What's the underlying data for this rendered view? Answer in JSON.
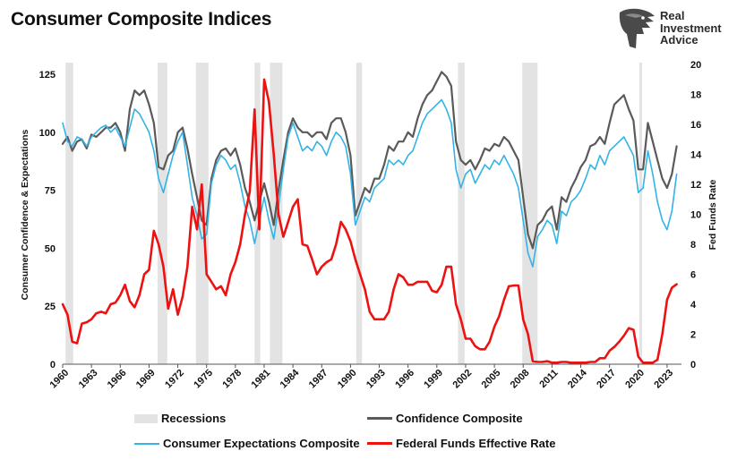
{
  "page": {
    "title": "Consumer Composite Indices"
  },
  "logo": {
    "lines": [
      "Real",
      "Investment",
      "Advice"
    ],
    "icon": "eagle-head-icon"
  },
  "colors": {
    "confidence": "#5a5a5a",
    "expectations": "#33b3e6",
    "fedfunds": "#ee1111",
    "recession": "#e3e3e3"
  },
  "chart_data": {
    "type": "line",
    "title": "Consumer Composite Indices",
    "xlabel": "",
    "ylabel": "Consumer Confidence & Expectations",
    "ylabel_right": "Fed Funds Rate",
    "xlim": [
      1960,
      2024.5
    ],
    "ylim": [
      0,
      125
    ],
    "ylim_right": [
      0,
      20
    ],
    "x_ticks": [
      "1960",
      "1963",
      "1966",
      "1969",
      "1972",
      "1975",
      "1978",
      "1981",
      "1984",
      "1987",
      "1990",
      "1993",
      "1996",
      "1999",
      "2002",
      "2005",
      "2008",
      "2011",
      "2014",
      "2017",
      "2020",
      "2023"
    ],
    "y_ticks": [
      "0",
      "25",
      "50",
      "75",
      "100",
      "125"
    ],
    "y_ticks_right": [
      "0",
      "2",
      "4",
      "6",
      "8",
      "10",
      "12",
      "14",
      "16",
      "18",
      "20"
    ],
    "recessions": [
      [
        1960.3,
        1961.1
      ],
      [
        1969.9,
        1970.9
      ],
      [
        1973.9,
        1975.2
      ],
      [
        1980.0,
        1980.6
      ],
      [
        1981.6,
        1982.9
      ],
      [
        1990.6,
        1991.2
      ],
      [
        2001.2,
        2001.9
      ],
      [
        2007.9,
        2009.5
      ],
      [
        2020.1,
        2020.4
      ]
    ],
    "series": [
      {
        "name": "Confidence Composite",
        "axis": "left",
        "x": [
          1960,
          1960.5,
          1961,
          1961.5,
          1962,
          1962.5,
          1963,
          1963.5,
          1964,
          1964.5,
          1965,
          1965.5,
          1966,
          1966.5,
          1967,
          1967.5,
          1968,
          1968.5,
          1969,
          1969.5,
          1970,
          1970.5,
          1971,
          1971.5,
          1972,
          1972.5,
          1973,
          1973.5,
          1974,
          1974.5,
          1975,
          1975.5,
          1976,
          1976.5,
          1977,
          1977.5,
          1978,
          1978.5,
          1979,
          1979.5,
          1980,
          1980.5,
          1981,
          1981.5,
          1982,
          1982.5,
          1983,
          1983.5,
          1984,
          1984.5,
          1985,
          1985.5,
          1986,
          1986.5,
          1987,
          1987.5,
          1988,
          1988.5,
          1989,
          1989.5,
          1990,
          1990.5,
          1991,
          1991.5,
          1992,
          1992.5,
          1993,
          1993.5,
          1994,
          1994.5,
          1995,
          1995.5,
          1996,
          1996.5,
          1997,
          1997.5,
          1998,
          1998.5,
          1999,
          1999.5,
          2000,
          2000.5,
          2001,
          2001.5,
          2002,
          2002.5,
          2003,
          2003.5,
          2004,
          2004.5,
          2005,
          2005.5,
          2006,
          2006.5,
          2007,
          2007.5,
          2008,
          2008.5,
          2009,
          2009.5,
          2010,
          2010.5,
          2011,
          2011.5,
          2012,
          2012.5,
          2013,
          2013.5,
          2014,
          2014.5,
          2015,
          2015.5,
          2016,
          2016.5,
          2017,
          2017.5,
          2018,
          2018.5,
          2019,
          2019.5,
          2020,
          2020.5,
          2021,
          2021.5,
          2022,
          2022.5,
          2023,
          2023.5,
          2024
        ],
        "values": [
          95,
          98,
          92,
          96,
          97,
          93,
          99,
          98,
          100,
          102,
          102,
          104,
          100,
          92,
          110,
          118,
          116,
          118,
          112,
          104,
          85,
          84,
          90,
          92,
          100,
          102,
          93,
          82,
          72,
          62,
          60,
          80,
          88,
          92,
          93,
          90,
          93,
          86,
          76,
          70,
          62,
          70,
          78,
          70,
          60,
          75,
          88,
          100,
          106,
          102,
          100,
          100,
          98,
          100,
          100,
          97,
          104,
          106,
          106,
          100,
          90,
          64,
          70,
          76,
          74,
          80,
          80,
          86,
          94,
          92,
          96,
          96,
          100,
          98,
          106,
          112,
          116,
          118,
          122,
          126,
          124,
          120,
          96,
          88,
          86,
          88,
          84,
          88,
          93,
          92,
          95,
          94,
          98,
          96,
          92,
          88,
          72,
          56,
          50,
          60,
          62,
          66,
          68,
          58,
          72,
          70,
          76,
          80,
          85,
          88,
          94,
          95,
          98,
          95,
          104,
          112,
          114,
          116,
          110,
          105,
          84,
          84,
          104,
          96,
          88,
          80,
          76,
          82,
          94
        ]
      },
      {
        "name": "Consumer Expectations Composite",
        "axis": "left",
        "x": [
          1960,
          1960.5,
          1961,
          1961.5,
          1962,
          1962.5,
          1963,
          1963.5,
          1964,
          1964.5,
          1965,
          1965.5,
          1966,
          1966.5,
          1967,
          1967.5,
          1968,
          1968.5,
          1969,
          1969.5,
          1970,
          1970.5,
          1971,
          1971.5,
          1972,
          1972.5,
          1973,
          1973.5,
          1974,
          1974.5,
          1975,
          1975.5,
          1976,
          1976.5,
          1977,
          1977.5,
          1978,
          1978.5,
          1979,
          1979.5,
          1980,
          1980.5,
          1981,
          1981.5,
          1982,
          1982.5,
          1983,
          1983.5,
          1984,
          1984.5,
          1985,
          1985.5,
          1986,
          1986.5,
          1987,
          1987.5,
          1988,
          1988.5,
          1989,
          1989.5,
          1990,
          1990.5,
          1991,
          1991.5,
          1992,
          1992.5,
          1993,
          1993.5,
          1994,
          1994.5,
          1995,
          1995.5,
          1996,
          1996.5,
          1997,
          1997.5,
          1998,
          1998.5,
          1999,
          1999.5,
          2000,
          2000.5,
          2001,
          2001.5,
          2002,
          2002.5,
          2003,
          2003.5,
          2004,
          2004.5,
          2005,
          2005.5,
          2006,
          2006.5,
          2007,
          2007.5,
          2008,
          2008.5,
          2009,
          2009.5,
          2010,
          2010.5,
          2011,
          2011.5,
          2012,
          2012.5,
          2013,
          2013.5,
          2014,
          2014.5,
          2015,
          2015.5,
          2016,
          2016.5,
          2017,
          2017.5,
          2018,
          2018.5,
          2019,
          2019.5,
          2020,
          2020.5,
          2021,
          2021.5,
          2022,
          2022.5,
          2023,
          2023.5,
          2024
        ],
        "values": [
          104,
          96,
          94,
          98,
          97,
          94,
          98,
          100,
          102,
          103,
          100,
          102,
          98,
          94,
          102,
          110,
          108,
          104,
          100,
          92,
          80,
          74,
          82,
          90,
          96,
          100,
          86,
          72,
          64,
          54,
          56,
          78,
          86,
          90,
          88,
          84,
          86,
          78,
          68,
          62,
          52,
          62,
          72,
          62,
          54,
          68,
          84,
          98,
          104,
          98,
          92,
          94,
          92,
          96,
          94,
          90,
          96,
          100,
          98,
          94,
          82,
          60,
          66,
          72,
          70,
          76,
          78,
          80,
          88,
          86,
          88,
          86,
          90,
          92,
          98,
          104,
          108,
          110,
          112,
          114,
          110,
          104,
          84,
          76,
          82,
          84,
          78,
          82,
          86,
          84,
          88,
          86,
          90,
          86,
          82,
          76,
          62,
          48,
          42,
          55,
          58,
          62,
          60,
          52,
          66,
          64,
          70,
          72,
          75,
          80,
          86,
          84,
          90,
          86,
          92,
          94,
          96,
          98,
          94,
          90,
          74,
          76,
          92,
          82,
          70,
          62,
          58,
          66,
          82
        ]
      },
      {
        "name": "Federal Funds Effective Rate",
        "axis": "right",
        "x": [
          1960,
          1960.5,
          1961,
          1961.5,
          1962,
          1962.5,
          1963,
          1963.5,
          1964,
          1964.5,
          1965,
          1965.5,
          1966,
          1966.5,
          1967,
          1967.5,
          1968,
          1968.5,
          1969,
          1969.5,
          1970,
          1970.5,
          1971,
          1971.5,
          1972,
          1972.5,
          1973,
          1973.5,
          1974,
          1974.5,
          1975,
          1975.5,
          1976,
          1976.5,
          1977,
          1977.5,
          1978,
          1978.5,
          1979,
          1979.5,
          1980,
          1980.5,
          1981,
          1981.5,
          1982,
          1982.5,
          1983,
          1983.5,
          1984,
          1984.5,
          1985,
          1985.5,
          1986,
          1986.5,
          1987,
          1987.5,
          1988,
          1988.5,
          1989,
          1989.5,
          1990,
          1990.5,
          1991,
          1991.5,
          1992,
          1992.5,
          1993,
          1993.5,
          1994,
          1994.5,
          1995,
          1995.5,
          1996,
          1996.5,
          1997,
          1997.5,
          1998,
          1998.5,
          1999,
          1999.5,
          2000,
          2000.5,
          2001,
          2001.5,
          2002,
          2002.5,
          2003,
          2003.5,
          2004,
          2004.5,
          2005,
          2005.5,
          2006,
          2006.5,
          2007,
          2007.5,
          2008,
          2008.5,
          2009,
          2009.5,
          2010,
          2010.5,
          2011,
          2011.5,
          2012,
          2012.5,
          2013,
          2013.5,
          2014,
          2014.5,
          2015,
          2015.5,
          2016,
          2016.5,
          2017,
          2017.5,
          2018,
          2018.5,
          2019,
          2019.5,
          2020,
          2020.5,
          2021,
          2021.5,
          2022,
          2022.5,
          2023,
          2023.5,
          2024
        ],
        "values": [
          4.0,
          3.3,
          1.5,
          1.4,
          2.7,
          2.8,
          3.0,
          3.4,
          3.5,
          3.4,
          4.0,
          4.1,
          4.6,
          5.3,
          4.2,
          3.8,
          4.6,
          6.0,
          6.3,
          8.9,
          8.0,
          6.5,
          3.7,
          5.0,
          3.3,
          4.5,
          6.5,
          10.5,
          9.0,
          12.0,
          6.0,
          5.5,
          5.0,
          5.2,
          4.6,
          6.0,
          6.8,
          8.0,
          10.0,
          11.5,
          17.0,
          9.0,
          19.0,
          17.5,
          14.0,
          10.0,
          8.5,
          9.5,
          10.5,
          11.0,
          8.0,
          7.9,
          7.0,
          6.0,
          6.5,
          6.8,
          7.0,
          8.0,
          9.5,
          9.0,
          8.2,
          7.0,
          6.0,
          5.0,
          3.5,
          3.0,
          3.0,
          3.0,
          3.5,
          5.0,
          6.0,
          5.8,
          5.3,
          5.3,
          5.5,
          5.5,
          5.5,
          4.9,
          4.8,
          5.3,
          6.5,
          6.5,
          4.0,
          3.0,
          1.7,
          1.7,
          1.2,
          1.0,
          1.0,
          1.5,
          2.5,
          3.2,
          4.3,
          5.2,
          5.25,
          5.25,
          3.0,
          2.0,
          0.2,
          0.15,
          0.15,
          0.2,
          0.1,
          0.1,
          0.15,
          0.15,
          0.1,
          0.1,
          0.1,
          0.1,
          0.15,
          0.15,
          0.4,
          0.4,
          0.9,
          1.15,
          1.5,
          1.9,
          2.4,
          2.3,
          0.5,
          0.1,
          0.1,
          0.1,
          0.3,
          2.0,
          4.3,
          5.1,
          5.33
        ]
      }
    ]
  },
  "legend": {
    "recessions": "Recessions",
    "confidence": "Confidence Composite",
    "expectations": "Consumer Expectations Composite",
    "fedfunds": "Federal Funds Effective Rate"
  }
}
